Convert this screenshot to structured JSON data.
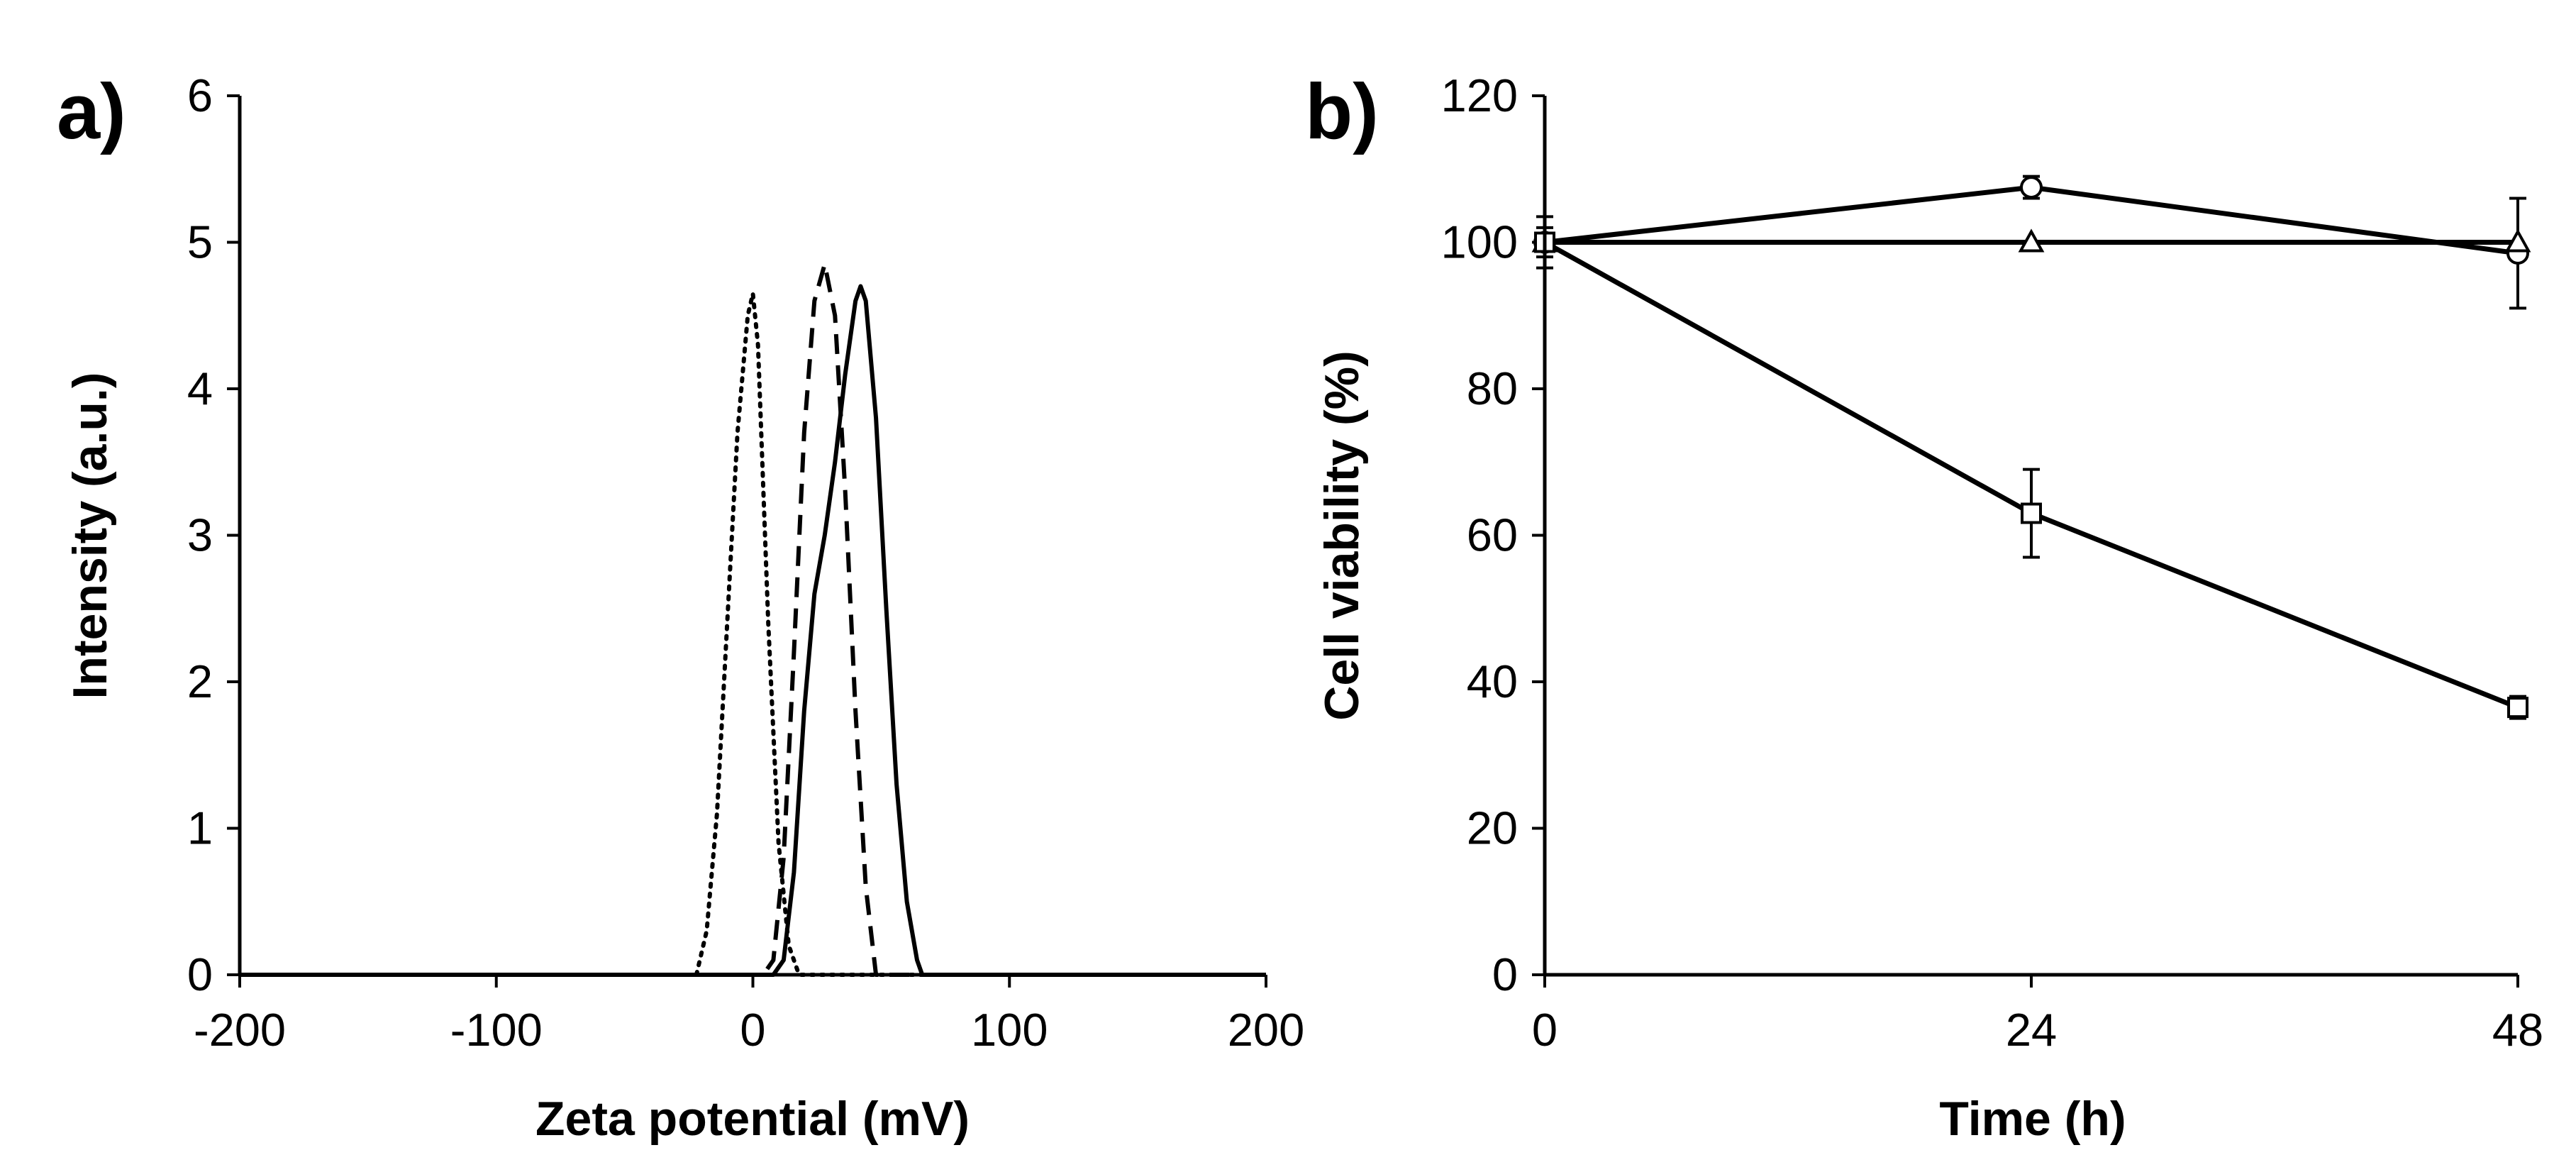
{
  "chart_data": [
    {
      "panel_label": "a)",
      "type": "line",
      "title": "",
      "xlabel": "Zeta potential (mV)",
      "ylabel": "Intensity (a.u.)",
      "xlim": [
        -200,
        200
      ],
      "ylim": [
        0,
        6
      ],
      "xticks": [
        -200,
        -100,
        0,
        100,
        200
      ],
      "yticks": [
        0,
        1,
        2,
        3,
        4,
        5,
        6
      ],
      "series": [
        {
          "name": "dotted",
          "style": "dotted",
          "x": [
            -200,
            -22,
            -18,
            -14,
            -10,
            -6,
            -2,
            0,
            2,
            6,
            10,
            14,
            18,
            200
          ],
          "y": [
            0,
            0,
            0.3,
            1.1,
            2.4,
            3.7,
            4.5,
            4.65,
            4.3,
            2.4,
            0.9,
            0.2,
            0,
            0
          ]
        },
        {
          "name": "dashed",
          "style": "dashed",
          "x": [
            -200,
            0,
            4,
            8,
            12,
            16,
            20,
            24,
            28,
            32,
            36,
            40,
            44,
            48,
            200
          ],
          "y": [
            0,
            0,
            0,
            0.1,
            0.8,
            2.2,
            3.7,
            4.6,
            4.85,
            4.5,
            3.3,
            1.8,
            0.6,
            0,
            0
          ]
        },
        {
          "name": "solid",
          "style": "solid",
          "x": [
            -200,
            8,
            12,
            16,
            20,
            24,
            28,
            32,
            36,
            40,
            42,
            44,
            48,
            52,
            56,
            60,
            64,
            66,
            200
          ],
          "y": [
            0,
            0,
            0.1,
            0.7,
            1.8,
            2.6,
            3.0,
            3.5,
            4.1,
            4.6,
            4.7,
            4.6,
            3.8,
            2.5,
            1.3,
            0.5,
            0.1,
            0,
            0
          ]
        }
      ]
    },
    {
      "panel_label": "b)",
      "type": "line",
      "title": "",
      "xlabel": "Time (h)",
      "ylabel": "Cell viability (%)",
      "xlim": [
        0,
        48
      ],
      "ylim": [
        0,
        120
      ],
      "xticks": [
        0,
        24,
        48
      ],
      "yticks": [
        0,
        20,
        40,
        60,
        80,
        100,
        120
      ],
      "series": [
        {
          "name": "circle",
          "marker": "circle",
          "x": [
            0,
            24,
            48
          ],
          "y": [
            100,
            107.5,
            98.5
          ],
          "err": [
            2,
            1.5,
            7.5
          ]
        },
        {
          "name": "triangle",
          "marker": "triangle",
          "x": [
            0,
            24,
            48
          ],
          "y": [
            100,
            100,
            100
          ],
          "err": [
            0,
            0,
            0
          ]
        },
        {
          "name": "square",
          "marker": "square",
          "x": [
            0,
            24,
            48
          ],
          "y": [
            100,
            63,
            36.5
          ],
          "err": [
            3.5,
            6,
            1.5
          ]
        }
      ]
    }
  ]
}
